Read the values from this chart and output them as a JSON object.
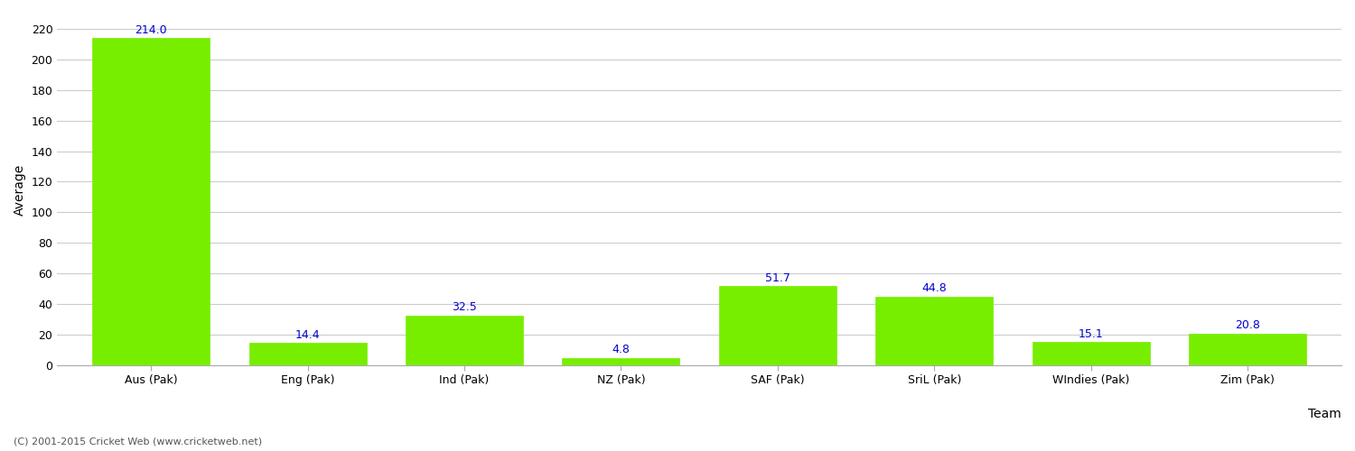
{
  "categories": [
    "Aus (Pak)",
    "Eng (Pak)",
    "Ind (Pak)",
    "NZ (Pak)",
    "SAF (Pak)",
    "SriL (Pak)",
    "WIndies (Pak)",
    "Zim (Pak)"
  ],
  "values": [
    214.0,
    14.4,
    32.5,
    4.8,
    51.7,
    44.8,
    15.1,
    20.8
  ],
  "bar_color": "#77ee00",
  "bar_edge_color": "#77ee00",
  "label_color": "#0000cc",
  "xlabel": "Team",
  "ylabel": "Average",
  "ylim": [
    0,
    230
  ],
  "yticks": [
    0,
    20,
    40,
    60,
    80,
    100,
    120,
    140,
    160,
    180,
    200,
    220
  ],
  "grid_color": "#cccccc",
  "background_color": "#ffffff",
  "label_fontsize": 9,
  "axis_label_fontsize": 10,
  "tick_fontsize": 9,
  "footer_text": "(C) 2001-2015 Cricket Web (www.cricketweb.net)",
  "footer_fontsize": 8,
  "footer_color": "#555555"
}
